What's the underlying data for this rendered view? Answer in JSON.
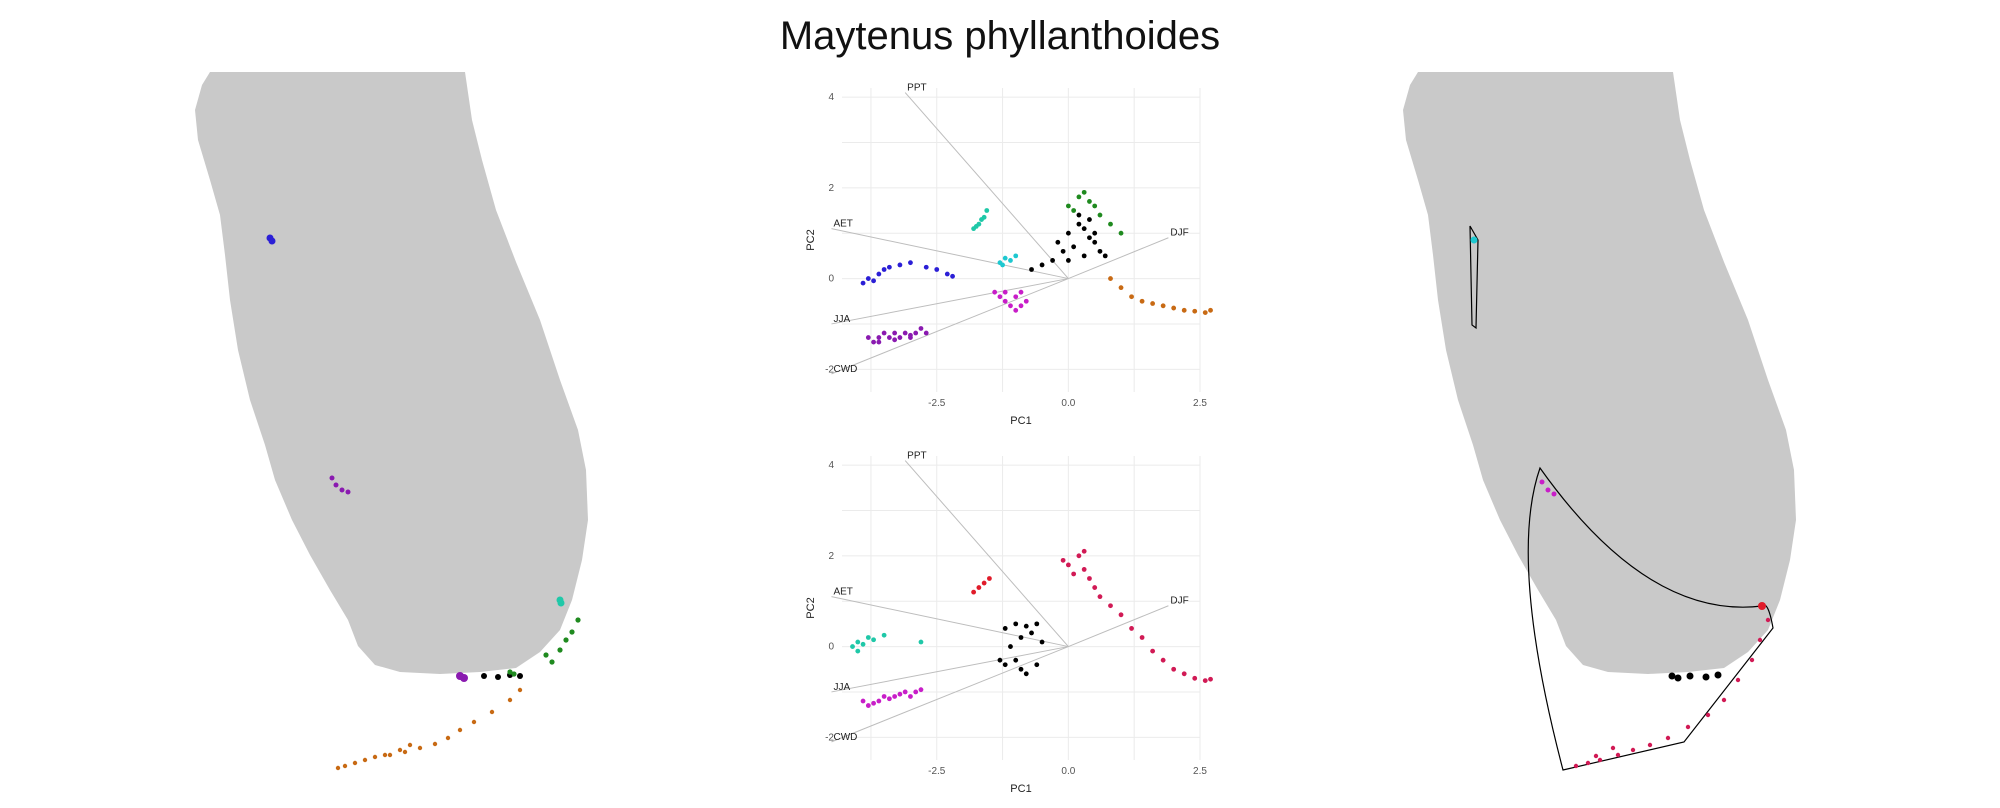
{
  "title": "Maytenus phyllanthoides",
  "colors": {
    "land": "#c9c9c9",
    "grid": "#ebebeb",
    "arrow": "#bdbdbd",
    "black": "#000000",
    "blue": "#2b1fd6",
    "purple": "#8a1ab0",
    "magenta": "#c81ec8",
    "teal": "#1fc8a8",
    "cyan": "#1ec8d0",
    "green": "#1f8a1f",
    "orange": "#c86a14",
    "red": "#e01b2a",
    "crimson": "#d11a55"
  },
  "chart_data": [
    {
      "type": "scatter",
      "panel": "pca-top",
      "xlabel": "PC1",
      "ylabel": "PC2",
      "xlim": [
        -4.3,
        2.5
      ],
      "ylim": [
        -2.5,
        4.2
      ],
      "xticks": [
        -2.5,
        0.0,
        2.5
      ],
      "xtick_labels": [
        "-2.5",
        "0.0",
        "2.5"
      ],
      "yticks": [
        -2,
        0,
        2,
        4
      ],
      "ytick_labels": [
        "-2",
        "0",
        "2",
        "4"
      ],
      "grid": true,
      "loadings": [
        {
          "label": "PPT",
          "end": [
            -3.1,
            4.1
          ]
        },
        {
          "label": "AET",
          "end": [
            -4.5,
            1.1
          ]
        },
        {
          "label": "DJF",
          "end": [
            1.9,
            0.9
          ]
        },
        {
          "label": "JJA",
          "end": [
            -4.5,
            -1.0
          ]
        },
        {
          "label": "CWD",
          "end": [
            -4.5,
            -2.1
          ]
        }
      ],
      "clusters": [
        {
          "color": "blue",
          "points": [
            [
              -3.9,
              -0.1
            ],
            [
              -3.8,
              0.0
            ],
            [
              -3.7,
              -0.05
            ],
            [
              -3.6,
              0.1
            ],
            [
              -3.5,
              0.2
            ],
            [
              -3.4,
              0.25
            ],
            [
              -3.2,
              0.3
            ],
            [
              -3.0,
              0.35
            ],
            [
              -2.7,
              0.25
            ],
            [
              -2.5,
              0.2
            ],
            [
              -2.3,
              0.1
            ],
            [
              -2.2,
              0.05
            ]
          ]
        },
        {
          "color": "purple",
          "points": [
            [
              -3.8,
              -1.3
            ],
            [
              -3.7,
              -1.4
            ],
            [
              -3.6,
              -1.3
            ],
            [
              -3.5,
              -1.2
            ],
            [
              -3.4,
              -1.3
            ],
            [
              -3.3,
              -1.2
            ],
            [
              -3.2,
              -1.3
            ],
            [
              -3.1,
              -1.2
            ],
            [
              -3.0,
              -1.3
            ],
            [
              -2.9,
              -1.2
            ],
            [
              -2.8,
              -1.1
            ],
            [
              -2.7,
              -1.2
            ],
            [
              -3.6,
              -1.4
            ],
            [
              -3.3,
              -1.35
            ],
            [
              -3.0,
              -1.25
            ]
          ]
        },
        {
          "color": "teal",
          "points": [
            [
              -1.8,
              1.1
            ],
            [
              -1.7,
              1.2
            ],
            [
              -1.6,
              1.35
            ],
            [
              -1.55,
              1.5
            ],
            [
              -1.65,
              1.3
            ],
            [
              -1.75,
              1.15
            ]
          ]
        },
        {
          "color": "cyan",
          "points": [
            [
              -1.3,
              0.35
            ],
            [
              -1.2,
              0.45
            ],
            [
              -1.1,
              0.4
            ],
            [
              -1.0,
              0.5
            ],
            [
              -1.25,
              0.3
            ]
          ]
        },
        {
          "color": "magenta",
          "points": [
            [
              -1.4,
              -0.3
            ],
            [
              -1.3,
              -0.4
            ],
            [
              -1.2,
              -0.5
            ],
            [
              -1.1,
              -0.6
            ],
            [
              -1.0,
              -0.7
            ],
            [
              -0.9,
              -0.6
            ],
            [
              -0.8,
              -0.5
            ],
            [
              -1.2,
              -0.3
            ],
            [
              -1.0,
              -0.4
            ],
            [
              -0.9,
              -0.3
            ]
          ]
        },
        {
          "color": "green",
          "points": [
            [
              0.0,
              1.6
            ],
            [
              0.2,
              1.8
            ],
            [
              0.3,
              1.9
            ],
            [
              0.5,
              1.6
            ],
            [
              0.6,
              1.4
            ],
            [
              0.8,
              1.2
            ],
            [
              1.0,
              1.0
            ],
            [
              0.1,
              1.5
            ],
            [
              0.4,
              1.7
            ]
          ]
        },
        {
          "color": "orange",
          "points": [
            [
              0.8,
              0.0
            ],
            [
              1.0,
              -0.2
            ],
            [
              1.2,
              -0.4
            ],
            [
              1.4,
              -0.5
            ],
            [
              1.6,
              -0.55
            ],
            [
              1.8,
              -0.6
            ],
            [
              2.0,
              -0.65
            ],
            [
              2.2,
              -0.7
            ],
            [
              2.4,
              -0.72
            ],
            [
              2.6,
              -0.75
            ],
            [
              2.7,
              -0.7
            ]
          ]
        },
        {
          "color": "black",
          "points": [
            [
              -0.2,
              0.8
            ],
            [
              0.0,
              1.0
            ],
            [
              0.2,
              1.2
            ],
            [
              0.3,
              1.1
            ],
            [
              0.4,
              0.9
            ],
            [
              0.5,
              0.8
            ],
            [
              0.6,
              0.6
            ],
            [
              0.3,
              0.5
            ],
            [
              0.0,
              0.4
            ],
            [
              -0.3,
              0.4
            ],
            [
              -0.5,
              0.3
            ],
            [
              -0.7,
              0.2
            ],
            [
              0.4,
              1.3
            ],
            [
              0.2,
              1.4
            ],
            [
              0.5,
              1.0
            ],
            [
              0.7,
              0.5
            ],
            [
              0.1,
              0.7
            ],
            [
              -0.1,
              0.6
            ]
          ]
        }
      ]
    },
    {
      "type": "scatter",
      "panel": "pca-bottom",
      "xlabel": "PC1",
      "ylabel": "PC2",
      "xlim": [
        -4.3,
        2.5
      ],
      "ylim": [
        -2.5,
        4.2
      ],
      "xticks": [
        -2.5,
        0.0,
        2.5
      ],
      "xtick_labels": [
        "-2.5",
        "0.0",
        "2.5"
      ],
      "yticks": [
        -2,
        0,
        2,
        4
      ],
      "ytick_labels": [
        "-2",
        "0",
        "2",
        "4"
      ],
      "grid": true,
      "loadings": [
        {
          "label": "PPT",
          "end": [
            -3.1,
            4.1
          ]
        },
        {
          "label": "AET",
          "end": [
            -4.5,
            1.1
          ]
        },
        {
          "label": "DJF",
          "end": [
            1.9,
            0.9
          ]
        },
        {
          "label": "JJA",
          "end": [
            -4.5,
            -1.0
          ]
        },
        {
          "label": "CWD",
          "end": [
            -4.5,
            -2.1
          ]
        }
      ],
      "clusters": [
        {
          "color": "teal",
          "points": [
            [
              -4.1,
              0.0
            ],
            [
              -4.0,
              0.1
            ],
            [
              -3.9,
              0.05
            ],
            [
              -3.8,
              0.2
            ],
            [
              -3.7,
              0.15
            ],
            [
              -3.5,
              0.25
            ],
            [
              -2.8,
              0.1
            ],
            [
              -4.0,
              -0.1
            ]
          ]
        },
        {
          "color": "magenta",
          "points": [
            [
              -3.9,
              -1.2
            ],
            [
              -3.8,
              -1.3
            ],
            [
              -3.7,
              -1.25
            ],
            [
              -3.6,
              -1.2
            ],
            [
              -3.5,
              -1.1
            ],
            [
              -3.4,
              -1.15
            ],
            [
              -3.3,
              -1.1
            ],
            [
              -3.2,
              -1.05
            ],
            [
              -3.1,
              -1.0
            ],
            [
              -3.0,
              -1.1
            ],
            [
              -2.9,
              -1.0
            ],
            [
              -2.8,
              -0.95
            ]
          ]
        },
        {
          "color": "red",
          "points": [
            [
              -1.8,
              1.2
            ],
            [
              -1.7,
              1.3
            ],
            [
              -1.6,
              1.4
            ],
            [
              -1.5,
              1.5
            ]
          ]
        },
        {
          "color": "black",
          "points": [
            [
              -1.2,
              0.4
            ],
            [
              -1.0,
              0.5
            ],
            [
              -0.8,
              0.45
            ],
            [
              -0.6,
              0.5
            ],
            [
              -0.7,
              0.3
            ],
            [
              -0.9,
              0.2
            ],
            [
              -1.1,
              0.0
            ],
            [
              -1.0,
              -0.3
            ],
            [
              -0.9,
              -0.5
            ],
            [
              -0.8,
              -0.6
            ],
            [
              -1.2,
              -0.4
            ],
            [
              -1.3,
              -0.3
            ],
            [
              -0.6,
              -0.4
            ],
            [
              -0.5,
              0.1
            ]
          ]
        },
        {
          "color": "crimson",
          "points": [
            [
              0.0,
              1.8
            ],
            [
              0.2,
              2.0
            ],
            [
              0.3,
              1.7
            ],
            [
              0.4,
              1.5
            ],
            [
              0.5,
              1.3
            ],
            [
              0.6,
              1.1
            ],
            [
              0.8,
              0.9
            ],
            [
              1.0,
              0.7
            ],
            [
              1.2,
              0.4
            ],
            [
              1.4,
              0.2
            ],
            [
              1.6,
              -0.1
            ],
            [
              1.8,
              -0.3
            ],
            [
              2.0,
              -0.5
            ],
            [
              2.2,
              -0.6
            ],
            [
              2.4,
              -0.7
            ],
            [
              2.6,
              -0.75
            ],
            [
              2.7,
              -0.72
            ],
            [
              0.1,
              1.6
            ],
            [
              0.3,
              2.1
            ],
            [
              -0.1,
              1.9
            ]
          ]
        }
      ]
    }
  ]
}
